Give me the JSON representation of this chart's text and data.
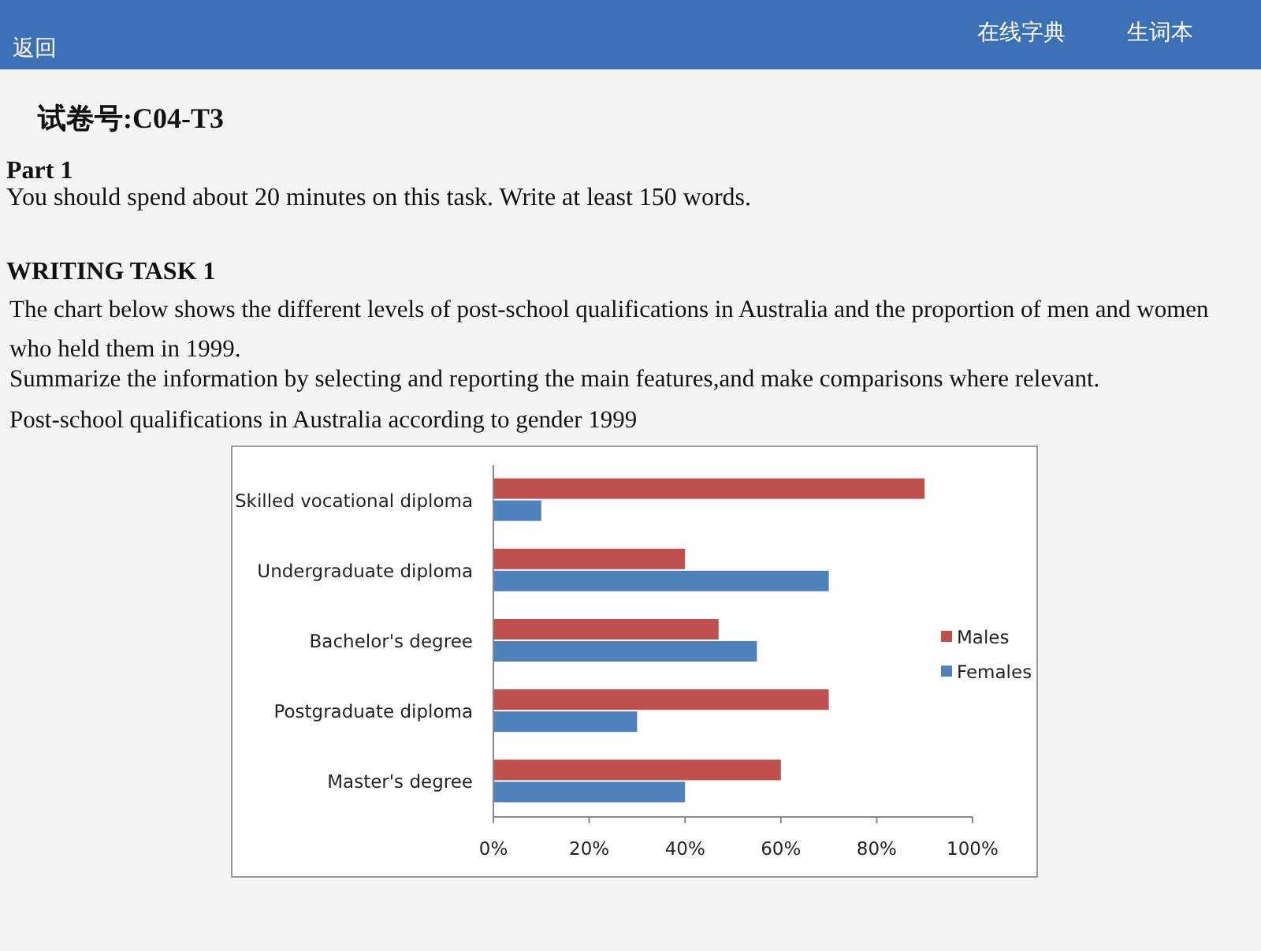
{
  "chart_data": {
    "type": "bar",
    "orientation": "horizontal",
    "title": "Post-school qualifications in Australia according to gender 1999",
    "annotations": [
      "返回",
      "在线字典",
      "生词本",
      "试卷号:C04-T3",
      "Part 1",
      "You should spend about 20 minutes on this task. Write at least 150 words.",
      "WRITING TASK 1",
      "The chart below shows the different levels of post-school qualifications in Australia and the proportion of men and women who held them in 1999.",
      "Summarize the information by selecting and reporting the main features,and make comparisons where relevant."
    ],
    "categories": [
      "Skilled vocational diploma",
      "Undergraduate diploma",
      "Bachelor's degree",
      "Postgraduate diploma",
      "Master's degree"
    ],
    "series": [
      {
        "name": "Males",
        "color": "#c0504d",
        "values": [
          90,
          40,
          47,
          70,
          60
        ]
      },
      {
        "name": "Females",
        "color": "#4f81bd",
        "values": [
          10,
          70,
          55,
          30,
          40
        ]
      }
    ],
    "xlim": [
      0,
      100
    ],
    "xticks": [
      {
        "value": 0,
        "label": "0%"
      },
      {
        "value": 20,
        "label": "20%"
      },
      {
        "value": 40,
        "label": "40%"
      },
      {
        "value": 60,
        "label": "60%"
      },
      {
        "value": 80,
        "label": "80%"
      },
      {
        "value": 100,
        "label": "100%"
      }
    ],
    "grid": false,
    "legend": "right"
  }
}
